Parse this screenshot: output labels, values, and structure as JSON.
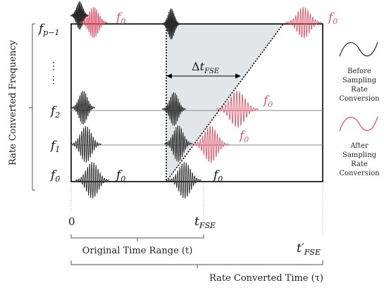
{
  "diagram": {
    "y_axis_label": "Rate Converted Frequency",
    "frequency_labels": {
      "top": {
        "base": "f",
        "sub": "p−1"
      },
      "mid2": {
        "base": "f",
        "sub": "2"
      },
      "mid1": {
        "base": "f",
        "sub": "1"
      },
      "bottom": {
        "base": "f",
        "sub": "0"
      }
    },
    "ellipsis": "⋮",
    "pulse_label": {
      "base": "f",
      "sub": "0"
    },
    "delta_label": {
      "prefix": "Δ",
      "base": "t",
      "sub": "FSE"
    },
    "x_labels": {
      "zero": "0",
      "t_fse": {
        "base": "t",
        "sub": "FSE"
      },
      "t_prime_fse": {
        "base": "t′",
        "sub": "FSE"
      }
    },
    "brackets": {
      "original": "Original Time Range (t)",
      "converted": "Rate Converted Time (τ)"
    },
    "legend": {
      "before": [
        "Before",
        "Sampling",
        "Rate",
        "Conversion"
      ],
      "after": [
        "After",
        "Sampling",
        "Rate",
        "Conversion"
      ]
    },
    "colors": {
      "before": "#2a2a2a",
      "after": "#e0566a",
      "shade": "#e3e6e8",
      "frame": "#000000"
    }
  }
}
